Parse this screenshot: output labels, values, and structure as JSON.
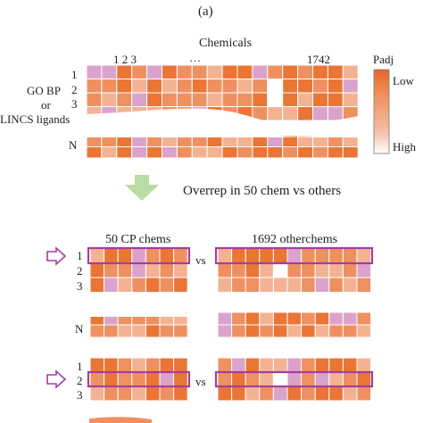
{
  "panel_label": "(a)",
  "top": {
    "header": "Chemicals",
    "col_labels": [
      "1 2 3",
      "…",
      "1742"
    ],
    "row_labels": [
      "1",
      "2",
      "3",
      "N"
    ],
    "side_label_lines": [
      "GO BP",
      "or",
      "LINCS ligands"
    ],
    "legend_title": "Padj",
    "legend_low": "Low",
    "legend_high": "High",
    "legend_colors": [
      "#e8672a",
      "#ef8a52",
      "#f2a57e",
      "#f4c0a8",
      "#ffffff"
    ]
  },
  "arrow_label": "Overrep in 50 chem vs others",
  "example1": {
    "left_title": "50 CP chems",
    "vs": "vs",
    "right_title": "1692 otherchems",
    "row_labels": [
      "1",
      "2",
      "3",
      "N"
    ],
    "highlight_row": 1
  },
  "example2": {
    "vs": "vs",
    "row_labels": [
      "1",
      "2",
      "3"
    ],
    "highlight_row": 2
  },
  "colors": {
    "cell_dark": "#ea7535",
    "cell_mid": "#ef9060",
    "cell_light": "#f3b393",
    "cell_pink": "#dba3cc",
    "highlight": "#a43ea0",
    "arrow": "#b9dca2"
  }
}
